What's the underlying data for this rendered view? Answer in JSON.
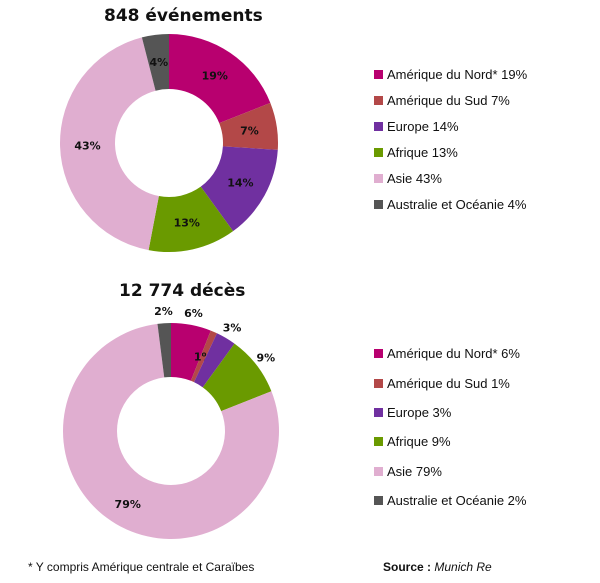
{
  "colors": {
    "amerique_nord": "#b8006f",
    "amerique_sud": "#b34848",
    "europe": "#7030a0",
    "afrique": "#6a9a00",
    "asie": "#e0aed0",
    "australie": "#555555"
  },
  "footnote": "* Y compris Amérique centrale et Caraïbes",
  "source": {
    "label": "Source :",
    "value": "Munich Re"
  },
  "chart_data": [
    {
      "type": "pie",
      "variant": "donut",
      "title": "848 événements",
      "categories": [
        "Amérique du Nord*",
        "Amérique du Sud",
        "Europe",
        "Afrique",
        "Asie",
        "Australie et Océanie"
      ],
      "values": [
        19,
        7,
        14,
        13,
        43,
        4
      ],
      "unit": "%",
      "legend_position": "right",
      "legend": [
        "Amérique du Nord* 19%",
        "Amérique du Sud 7%",
        "Europe 14%",
        "Afrique 13%",
        "Asie 43%",
        "Australie et Océanie 4%"
      ],
      "data_labels": [
        "19%",
        "7%",
        "14%",
        "13%",
        "43%",
        "4%"
      ]
    },
    {
      "type": "pie",
      "variant": "donut",
      "title": "12 774 décès",
      "categories": [
        "Amérique du Nord*",
        "Amérique du Sud",
        "Europe",
        "Afrique",
        "Asie",
        "Australie et Océanie"
      ],
      "values": [
        6,
        1,
        3,
        9,
        79,
        2
      ],
      "unit": "%",
      "legend_position": "right",
      "legend": [
        "Amérique du Nord* 6%",
        "Amérique du Sud 1%",
        "Europe 3%",
        "Afrique 9%",
        "Asie 79%",
        "Australie et Océanie 2%"
      ],
      "data_labels": [
        "6%",
        "1%",
        "3%",
        "9%",
        "79%",
        "2%"
      ]
    }
  ]
}
